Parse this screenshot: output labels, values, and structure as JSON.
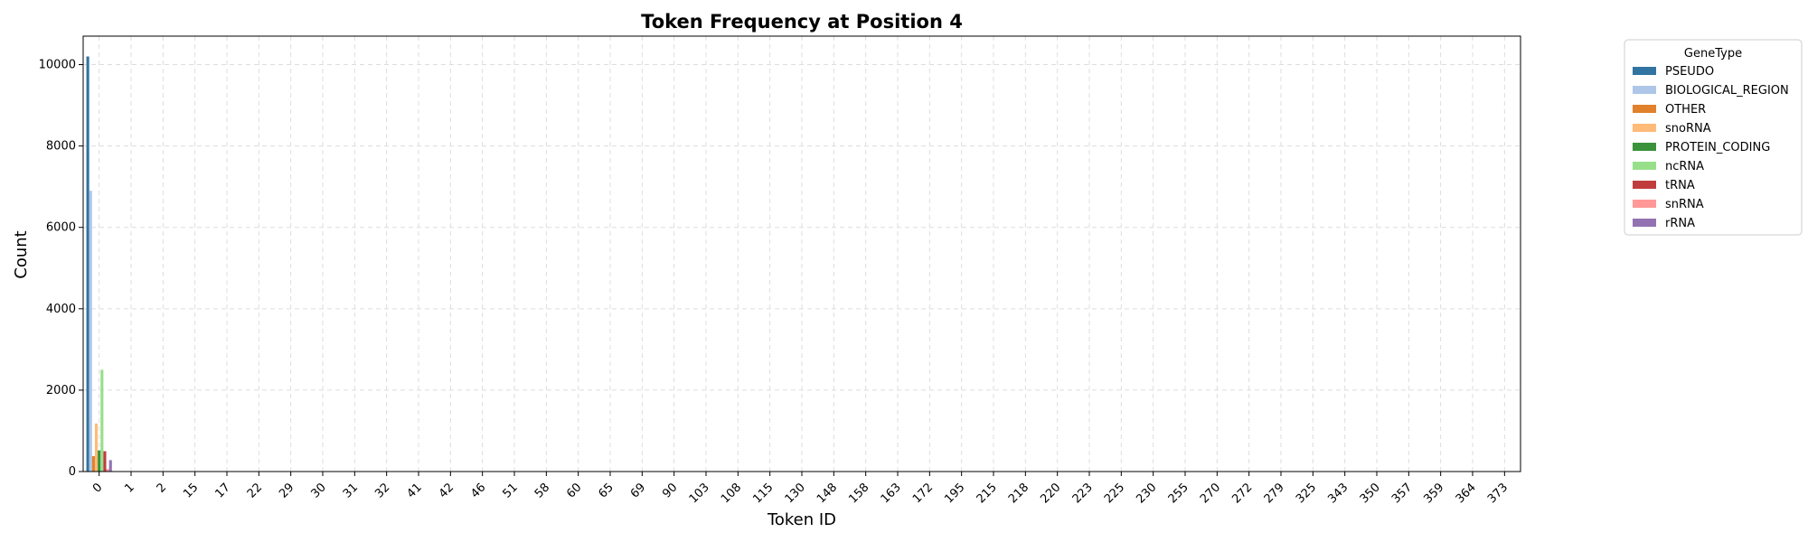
{
  "chart_data": {
    "type": "bar",
    "title": "Token Frequency at Position 4",
    "xlabel": "Token ID",
    "ylabel": "Count",
    "ylim": [
      0,
      10700
    ],
    "yticks": [
      0,
      2000,
      4000,
      6000,
      8000,
      10000
    ],
    "grid": true,
    "legend_title": "GeneType",
    "legend_position": "outside-top-right",
    "categories": [
      "0",
      "1",
      "2",
      "15",
      "17",
      "22",
      "29",
      "30",
      "31",
      "32",
      "41",
      "42",
      "46",
      "51",
      "58",
      "60",
      "65",
      "69",
      "90",
      "103",
      "108",
      "115",
      "130",
      "148",
      "158",
      "163",
      "172",
      "195",
      "215",
      "218",
      "220",
      "223",
      "225",
      "230",
      "255",
      "270",
      "272",
      "279",
      "325",
      "343",
      "350",
      "357",
      "359",
      "364",
      "373"
    ],
    "series": [
      {
        "name": "PSEUDO",
        "color": "#3274a1",
        "values": [
          10200,
          0,
          0,
          0,
          0,
          0,
          0,
          0,
          0,
          0,
          0,
          0,
          0,
          0,
          0,
          0,
          0,
          0,
          0,
          0,
          0,
          0,
          0,
          0,
          0,
          0,
          0,
          0,
          0,
          0,
          0,
          0,
          0,
          0,
          0,
          0,
          0,
          0,
          0,
          0,
          0,
          0,
          0,
          0,
          0
        ]
      },
      {
        "name": "BIOLOGICAL_REGION",
        "color": "#aec7e8",
        "values": [
          6900,
          0,
          0,
          0,
          0,
          0,
          0,
          0,
          0,
          0,
          0,
          0,
          0,
          0,
          0,
          0,
          0,
          0,
          0,
          0,
          0,
          0,
          0,
          0,
          0,
          0,
          0,
          0,
          0,
          0,
          0,
          0,
          0,
          0,
          0,
          0,
          0,
          0,
          0,
          0,
          0,
          0,
          0,
          0,
          0
        ]
      },
      {
        "name": "OTHER",
        "color": "#e1812c",
        "values": [
          380,
          0,
          0,
          0,
          0,
          0,
          0,
          0,
          0,
          0,
          0,
          0,
          0,
          0,
          0,
          0,
          0,
          0,
          0,
          0,
          0,
          0,
          0,
          0,
          0,
          0,
          0,
          0,
          0,
          0,
          0,
          0,
          0,
          0,
          0,
          0,
          0,
          0,
          0,
          0,
          0,
          0,
          0,
          0,
          0
        ]
      },
      {
        "name": "snoRNA",
        "color": "#ffbb78",
        "values": [
          1180,
          0,
          0,
          0,
          0,
          0,
          0,
          0,
          0,
          0,
          0,
          0,
          0,
          0,
          0,
          0,
          0,
          0,
          0,
          0,
          0,
          0,
          0,
          0,
          0,
          0,
          0,
          0,
          0,
          0,
          0,
          0,
          0,
          0,
          0,
          0,
          0,
          0,
          0,
          0,
          0,
          0,
          0,
          0,
          0
        ]
      },
      {
        "name": "PROTEIN_CODING",
        "color": "#3a923a",
        "values": [
          520,
          0,
          0,
          0,
          0,
          0,
          0,
          0,
          0,
          0,
          0,
          0,
          0,
          0,
          0,
          0,
          0,
          0,
          0,
          0,
          0,
          0,
          0,
          0,
          0,
          0,
          0,
          0,
          0,
          0,
          0,
          0,
          0,
          0,
          0,
          0,
          0,
          0,
          0,
          0,
          0,
          0,
          0,
          0,
          0
        ]
      },
      {
        "name": "ncRNA",
        "color": "#98df8a",
        "values": [
          2500,
          0,
          0,
          0,
          0,
          0,
          0,
          0,
          0,
          0,
          0,
          0,
          0,
          0,
          0,
          0,
          0,
          0,
          0,
          0,
          0,
          0,
          0,
          0,
          0,
          0,
          0,
          0,
          0,
          0,
          0,
          0,
          0,
          0,
          0,
          0,
          0,
          0,
          0,
          0,
          0,
          0,
          0,
          0,
          0
        ]
      },
      {
        "name": "tRNA",
        "color": "#c03d3e",
        "values": [
          500,
          0,
          0,
          0,
          0,
          0,
          0,
          0,
          0,
          0,
          0,
          0,
          0,
          0,
          0,
          0,
          0,
          0,
          0,
          0,
          0,
          0,
          0,
          0,
          0,
          0,
          0,
          0,
          0,
          0,
          0,
          0,
          0,
          0,
          0,
          0,
          0,
          0,
          0,
          0,
          0,
          0,
          0,
          0,
          0
        ]
      },
      {
        "name": "snRNA",
        "color": "#ff9896",
        "values": [
          60,
          0,
          0,
          0,
          0,
          0,
          0,
          0,
          0,
          0,
          0,
          0,
          0,
          0,
          0,
          0,
          0,
          0,
          0,
          0,
          0,
          0,
          0,
          0,
          0,
          0,
          0,
          0,
          0,
          0,
          0,
          0,
          0,
          0,
          0,
          0,
          0,
          0,
          0,
          0,
          0,
          0,
          0,
          0,
          0
        ]
      },
      {
        "name": "rRNA",
        "color": "#9372b2",
        "values": [
          280,
          0,
          0,
          0,
          0,
          0,
          0,
          0,
          0,
          0,
          0,
          0,
          0,
          0,
          0,
          0,
          0,
          0,
          0,
          0,
          0,
          0,
          0,
          0,
          0,
          0,
          0,
          0,
          0,
          0,
          0,
          0,
          0,
          0,
          0,
          0,
          0,
          0,
          0,
          0,
          0,
          0,
          0,
          0,
          0
        ]
      }
    ]
  }
}
